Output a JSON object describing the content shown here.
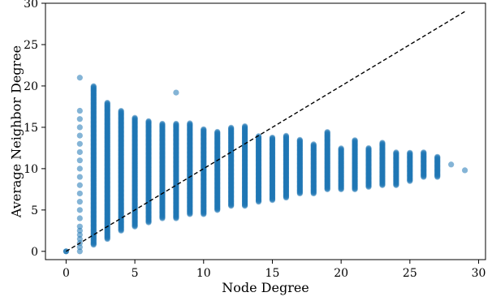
{
  "chart_data": {
    "type": "scatter",
    "xlabel": "Node Degree",
    "ylabel": "Average Neighbor Degree",
    "xlim": [
      -1.5,
      30.5
    ],
    "ylim": [
      -1.0,
      30.0
    ],
    "xticks": [
      0,
      5,
      10,
      15,
      20,
      25,
      30
    ],
    "yticks": [
      0,
      5,
      10,
      15,
      20,
      25,
      30
    ],
    "grid": false,
    "point_color": "#1f77b4",
    "reference_line": {
      "style": "dashed",
      "color": "#000000",
      "from": [
        0,
        0
      ],
      "to": [
        29,
        29
      ]
    },
    "columns": [
      {
        "x": 0,
        "min": 0,
        "max": 0
      },
      {
        "x": 1,
        "min": 0,
        "max": 17,
        "outliers": [
          21
        ]
      },
      {
        "x": 2,
        "min": 0.8,
        "max": 20
      },
      {
        "x": 3,
        "min": 1.5,
        "max": 18
      },
      {
        "x": 4,
        "min": 2.5,
        "max": 17
      },
      {
        "x": 5,
        "min": 3.0,
        "max": 16.2
      },
      {
        "x": 6,
        "min": 3.5,
        "max": 15.8
      },
      {
        "x": 7,
        "min": 4.0,
        "max": 15.5
      },
      {
        "x": 8,
        "min": 4.0,
        "max": 15.5,
        "outliers": [
          19.2
        ]
      },
      {
        "x": 9,
        "min": 4.5,
        "max": 15.5
      },
      {
        "x": 10,
        "min": 4.5,
        "max": 14.8
      },
      {
        "x": 11,
        "min": 5.0,
        "max": 14.5
      },
      {
        "x": 12,
        "min": 5.5,
        "max": 15.0
      },
      {
        "x": 13,
        "min": 5.5,
        "max": 15.2
      },
      {
        "x": 14,
        "min": 6.0,
        "max": 14.0
      },
      {
        "x": 15,
        "min": 6.2,
        "max": 13.8
      },
      {
        "x": 16,
        "min": 6.5,
        "max": 14.0
      },
      {
        "x": 17,
        "min": 7.0,
        "max": 13.5
      },
      {
        "x": 18,
        "min": 7.0,
        "max": 13.0
      },
      {
        "x": 19,
        "min": 7.5,
        "max": 14.5
      },
      {
        "x": 20,
        "min": 7.5,
        "max": 12.5
      },
      {
        "x": 21,
        "min": 7.5,
        "max": 13.5
      },
      {
        "x": 22,
        "min": 7.8,
        "max": 12.5
      },
      {
        "x": 23,
        "min": 8.0,
        "max": 13.2
      },
      {
        "x": 24,
        "min": 8.0,
        "max": 12.0
      },
      {
        "x": 25,
        "min": 8.5,
        "max": 12.0
      },
      {
        "x": 26,
        "min": 9.0,
        "max": 12.0
      },
      {
        "x": 27,
        "min": 9.0,
        "max": 11.5
      },
      {
        "x": 28,
        "min": 10.5,
        "max": 10.5
      },
      {
        "x": 29,
        "min": 9.8,
        "max": 9.8
      }
    ]
  }
}
